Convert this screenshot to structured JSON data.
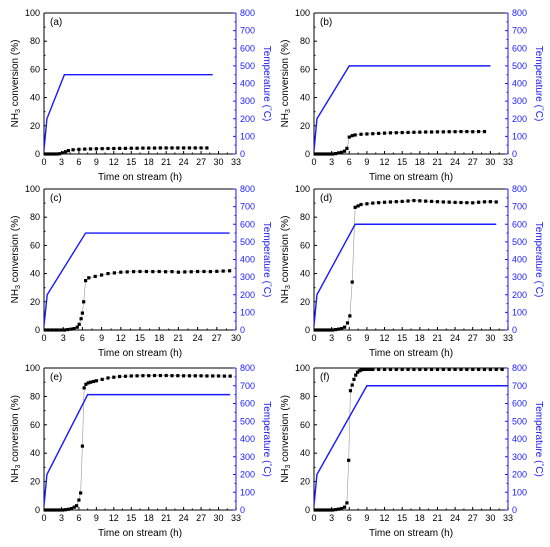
{
  "colors": {
    "conversion": "#000000",
    "temperature": "#1a1aff",
    "connector": "#999999"
  },
  "chart_data": [
    {
      "type": "line",
      "label": "(a)",
      "xlabel": "Time on stream (h)",
      "ylabel": "NH3 conversion (%)",
      "y2label": "Temperature (°C)",
      "xlim": [
        0,
        33
      ],
      "ylim": [
        0,
        100
      ],
      "y2lim": [
        0,
        800
      ],
      "xticks": [
        0,
        3,
        6,
        9,
        12,
        15,
        18,
        21,
        24,
        27,
        30,
        33
      ],
      "yticks": [
        0,
        20,
        40,
        60,
        80,
        100
      ],
      "y2ticks": [
        0,
        100,
        200,
        300,
        400,
        500,
        600,
        700,
        800
      ],
      "series": [
        {
          "axis": "left",
          "style": "markers",
          "x": [
            0.2,
            0.7,
            1.2,
            1.7,
            2.2,
            2.7,
            3.2,
            3.7,
            4.2,
            5,
            6,
            7,
            8,
            9,
            10,
            11,
            12,
            13,
            14,
            15,
            16,
            17,
            18,
            19,
            20,
            21,
            22,
            23,
            24,
            25,
            26,
            27,
            28
          ],
          "y": [
            0,
            0,
            0,
            0,
            0,
            0.2,
            0.8,
            1.6,
            2.4,
            3,
            3.3,
            3.5,
            3.6,
            3.7,
            3.8,
            3.9,
            3.9,
            4,
            4,
            4.1,
            4.1,
            4.2,
            4.2,
            4.2,
            4.3,
            4.3,
            4.3,
            4.3,
            4.3,
            4.3,
            4.3,
            4.3,
            4.3
          ]
        },
        {
          "axis": "right",
          "style": "line",
          "x": [
            0,
            0.5,
            3.5,
            29
          ],
          "y": [
            25,
            200,
            450,
            450
          ]
        }
      ]
    },
    {
      "type": "line",
      "label": "(b)",
      "xlabel": "Time on stream (h)",
      "ylabel": "NH3 conversion (%)",
      "y2label": "Temperature (°C)",
      "xlim": [
        0,
        33
      ],
      "ylim": [
        0,
        100
      ],
      "y2lim": [
        0,
        800
      ],
      "xticks": [
        0,
        3,
        6,
        9,
        12,
        15,
        18,
        21,
        24,
        27,
        30,
        33
      ],
      "yticks": [
        0,
        20,
        40,
        60,
        80,
        100
      ],
      "y2ticks": [
        0,
        100,
        200,
        300,
        400,
        500,
        600,
        700,
        800
      ],
      "series": [
        {
          "axis": "left",
          "style": "markers",
          "x": [
            0.2,
            0.7,
            1.2,
            1.7,
            2.2,
            2.7,
            3.2,
            3.7,
            4.2,
            4.7,
            5.2,
            5.6,
            6,
            6.5,
            7,
            8,
            9,
            10,
            11,
            12,
            13,
            14,
            15,
            16,
            17,
            18,
            19,
            20,
            21,
            22,
            23,
            24,
            25,
            26,
            27,
            28,
            29
          ],
          "y": [
            0,
            0,
            0,
            0,
            0,
            0,
            0,
            0.3,
            0.8,
            1.2,
            2,
            4,
            12,
            13,
            13.5,
            14,
            14.2,
            14.4,
            14.6,
            14.8,
            15,
            15.1,
            15.2,
            15.3,
            15.4,
            15.5,
            15.6,
            15.6,
            15.7,
            15.7,
            15.8,
            15.8,
            15.9,
            15.9,
            15.8,
            15.9,
            15.9
          ]
        },
        {
          "axis": "right",
          "style": "line",
          "x": [
            0,
            0.5,
            6,
            30
          ],
          "y": [
            20,
            200,
            500,
            500
          ]
        }
      ]
    },
    {
      "type": "line",
      "label": "(c)",
      "xlabel": "Time on stream (h)",
      "ylabel": "NH3 conversion (%)",
      "y2label": "Temperature (°C)",
      "xlim": [
        0,
        30
      ],
      "ylim": [
        0,
        100
      ],
      "y2lim": [
        0,
        800
      ],
      "xticks": [
        0,
        3,
        6,
        9,
        12,
        15,
        18,
        21,
        24,
        27,
        30
      ],
      "yticks": [
        0,
        20,
        40,
        60,
        80,
        100
      ],
      "y2ticks": [
        0,
        100,
        200,
        300,
        400,
        500,
        600,
        700,
        800
      ],
      "series": [
        {
          "axis": "left",
          "style": "markers",
          "x": [
            0.2,
            0.7,
            1.2,
            1.7,
            2.2,
            2.7,
            3.2,
            3.7,
            4.2,
            4.7,
            5.2,
            5.5,
            5.8,
            6,
            6.2,
            6.5,
            7,
            8,
            9,
            10,
            11,
            12,
            13,
            14,
            15,
            16,
            17,
            18,
            19,
            20,
            21,
            22,
            23,
            24,
            25,
            26,
            27,
            28,
            29
          ],
          "y": [
            0,
            0,
            0,
            0,
            0,
            0,
            0,
            0.3,
            0.6,
            1,
            2,
            4,
            8,
            12,
            20,
            35,
            37,
            38,
            39,
            40,
            40.5,
            41,
            41.2,
            41.4,
            41.5,
            41.5,
            41.4,
            41.5,
            41.3,
            41.4,
            41,
            41.2,
            41.3,
            41.5,
            41.5,
            41.4,
            41.6,
            41.8,
            42
          ]
        },
        {
          "axis": "right",
          "style": "line",
          "x": [
            0,
            0.5,
            6.5,
            29
          ],
          "y": [
            25,
            200,
            550,
            550
          ]
        }
      ]
    },
    {
      "type": "line",
      "label": "(d)",
      "xlabel": "Time on stream (h)",
      "ylabel": "NH3 conversion (%)",
      "y2label": "Temperature (°C)",
      "xlim": [
        0,
        33
      ],
      "ylim": [
        0,
        100
      ],
      "y2lim": [
        0,
        800
      ],
      "xticks": [
        0,
        3,
        6,
        9,
        12,
        15,
        18,
        21,
        24,
        27,
        30,
        33
      ],
      "yticks": [
        0,
        20,
        40,
        60,
        80,
        100
      ],
      "y2ticks": [
        0,
        100,
        200,
        300,
        400,
        500,
        600,
        700,
        800
      ],
      "series": [
        {
          "axis": "left",
          "style": "markers",
          "x": [
            0.2,
            0.7,
            1.2,
            1.7,
            2.2,
            2.7,
            3.2,
            3.7,
            4.2,
            4.7,
            5.2,
            5.7,
            6.1,
            6.5,
            7,
            7.5,
            8,
            9,
            10,
            11,
            12,
            13,
            14,
            15,
            16,
            17,
            18,
            19,
            20,
            21,
            22,
            23,
            24,
            25,
            26,
            27,
            28,
            29,
            30,
            31
          ],
          "y": [
            0,
            0,
            0,
            0,
            0,
            0,
            0,
            0.3,
            0.6,
            1,
            2,
            5,
            10,
            34,
            87,
            88,
            89,
            89.5,
            90,
            90.3,
            90.6,
            90.8,
            91,
            91.2,
            91.5,
            91.8,
            91.6,
            91.4,
            91.2,
            91,
            90.8,
            90.7,
            90.5,
            90.4,
            90.3,
            90.2,
            90.6,
            90.9,
            91,
            90.8
          ]
        },
        {
          "axis": "right",
          "style": "line",
          "x": [
            0,
            0.5,
            7,
            31
          ],
          "y": [
            25,
            200,
            600,
            600
          ]
        }
      ]
    },
    {
      "type": "line",
      "label": "(e)",
      "xlabel": "Time on stream (h)",
      "ylabel": "NH3 conversion (%)",
      "y2label": "Temperature (°C)",
      "xlim": [
        0,
        33
      ],
      "ylim": [
        0,
        100
      ],
      "y2lim": [
        0,
        800
      ],
      "xticks": [
        0,
        3,
        6,
        9,
        12,
        15,
        18,
        21,
        24,
        27,
        30,
        33
      ],
      "yticks": [
        0,
        20,
        40,
        60,
        80,
        100
      ],
      "y2ticks": [
        0,
        100,
        200,
        300,
        400,
        500,
        600,
        700,
        800
      ],
      "series": [
        {
          "axis": "left",
          "style": "markers",
          "x": [
            0.2,
            0.7,
            1.2,
            1.7,
            2.2,
            2.7,
            3.2,
            3.7,
            4.2,
            4.7,
            5.2,
            5.6,
            6,
            6.3,
            6.6,
            6.9,
            7.2,
            7.6,
            8,
            8.5,
            9,
            10,
            11,
            12,
            13,
            14,
            15,
            16,
            17,
            18,
            19,
            20,
            21,
            22,
            23,
            24,
            25,
            26,
            27,
            28,
            29,
            30,
            31,
            32
          ],
          "y": [
            0,
            0,
            0,
            0,
            0,
            0,
            0,
            0.2,
            0.5,
            1,
            2,
            3,
            7,
            12,
            45,
            86,
            88.5,
            89.5,
            90,
            90.5,
            91,
            92,
            93,
            93.5,
            94,
            94.2,
            94.4,
            94.5,
            94.6,
            94.6,
            94.7,
            94.7,
            94.7,
            94.6,
            94.6,
            94.5,
            94.5,
            94.5,
            94.5,
            94.4,
            94.4,
            94.4,
            94.3,
            94.3
          ]
        },
        {
          "axis": "right",
          "style": "line",
          "x": [
            0,
            0.5,
            7.5,
            32
          ],
          "y": [
            25,
            200,
            650,
            650
          ]
        }
      ]
    },
    {
      "type": "line",
      "label": "(f)",
      "xlabel": "Time on stream (h)",
      "ylabel": "NH3 conversion (%)",
      "y2label": "Temperature (°C)",
      "xlim": [
        0,
        33
      ],
      "ylim": [
        0,
        100
      ],
      "y2lim": [
        0,
        800
      ],
      "xticks": [
        0,
        3,
        6,
        9,
        12,
        15,
        18,
        21,
        24,
        27,
        30,
        33
      ],
      "yticks": [
        0,
        20,
        40,
        60,
        80,
        100
      ],
      "y2ticks": [
        0,
        100,
        200,
        300,
        400,
        500,
        600,
        700,
        800
      ],
      "series": [
        {
          "axis": "left",
          "style": "markers",
          "x": [
            0.2,
            0.7,
            1.2,
            1.7,
            2.2,
            2.7,
            3.2,
            3.7,
            4.2,
            4.7,
            5.2,
            5.6,
            5.9,
            6.2,
            6.5,
            6.8,
            7.1,
            7.4,
            7.7,
            8,
            8.5,
            9,
            9.5,
            10,
            11,
            12,
            13,
            14,
            15,
            16,
            17,
            18,
            19,
            20,
            21,
            22,
            23,
            24,
            25,
            26,
            27,
            28,
            29,
            30,
            31,
            32
          ],
          "y": [
            0,
            0,
            0,
            0,
            0,
            0,
            0,
            0.3,
            0.6,
            1,
            2,
            5,
            35,
            84,
            88,
            92,
            95,
            97,
            98,
            98.5,
            99,
            99,
            99,
            99,
            99,
            99,
            99,
            99,
            99,
            99,
            99,
            99,
            99,
            99,
            99,
            99,
            99,
            99,
            99,
            99,
            99,
            99,
            99,
            99,
            99,
            99
          ]
        },
        {
          "axis": "right",
          "style": "line",
          "x": [
            0,
            0.5,
            9,
            33
          ],
          "y": [
            25,
            200,
            700,
            700
          ]
        }
      ]
    }
  ]
}
